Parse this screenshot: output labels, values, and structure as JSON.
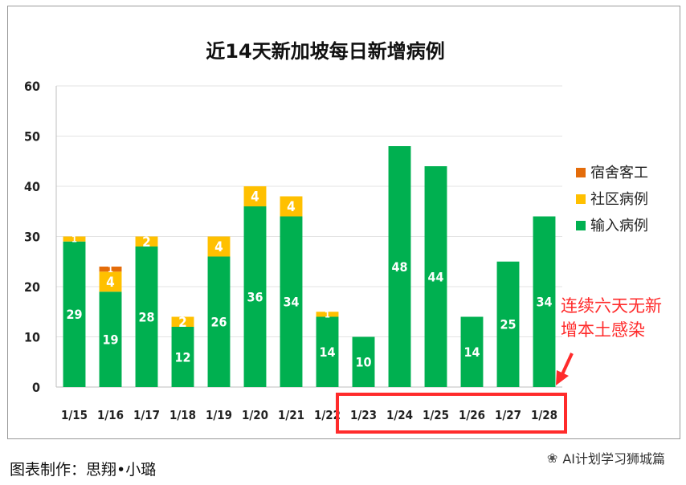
{
  "chart_data": {
    "type": "bar",
    "stacked": true,
    "title": "近14天新加坡每日新增病例",
    "categories": [
      "1/15",
      "1/16",
      "1/17",
      "1/18",
      "1/19",
      "1/20",
      "1/21",
      "1/22",
      "1/23",
      "1/24",
      "1/25",
      "1/26",
      "1/27",
      "1/28"
    ],
    "series": [
      {
        "name": "输入病例",
        "color": "#00b050",
        "values": [
          29,
          19,
          28,
          12,
          26,
          36,
          34,
          14,
          10,
          48,
          44,
          14,
          25,
          34
        ]
      },
      {
        "name": "社区病例",
        "color": "#ffc000",
        "values": [
          1,
          4,
          2,
          2,
          4,
          4,
          4,
          1,
          0,
          0,
          0,
          0,
          0,
          0
        ]
      },
      {
        "name": "宿舍客工",
        "color": "#e46c0a",
        "values": [
          0,
          1,
          0,
          0,
          0,
          0,
          0,
          0,
          0,
          0,
          0,
          0,
          0,
          0
        ]
      }
    ],
    "ylim": [
      0,
      60
    ],
    "yticks": [
      0,
      10,
      20,
      30,
      40,
      50,
      60
    ],
    "grid": true,
    "legend_position": "right",
    "annotation": {
      "line1": "连续六天无新",
      "line2": "增本土感染",
      "color": "#ff2b2b",
      "highlight_categories": [
        "1/23",
        "1/24",
        "1/25",
        "1/26",
        "1/27",
        "1/28"
      ]
    }
  },
  "caption": "图表制作：思翔•小璐",
  "watermark": {
    "icon": "wechat-icon",
    "text": "AI计划学习狮城篇"
  }
}
